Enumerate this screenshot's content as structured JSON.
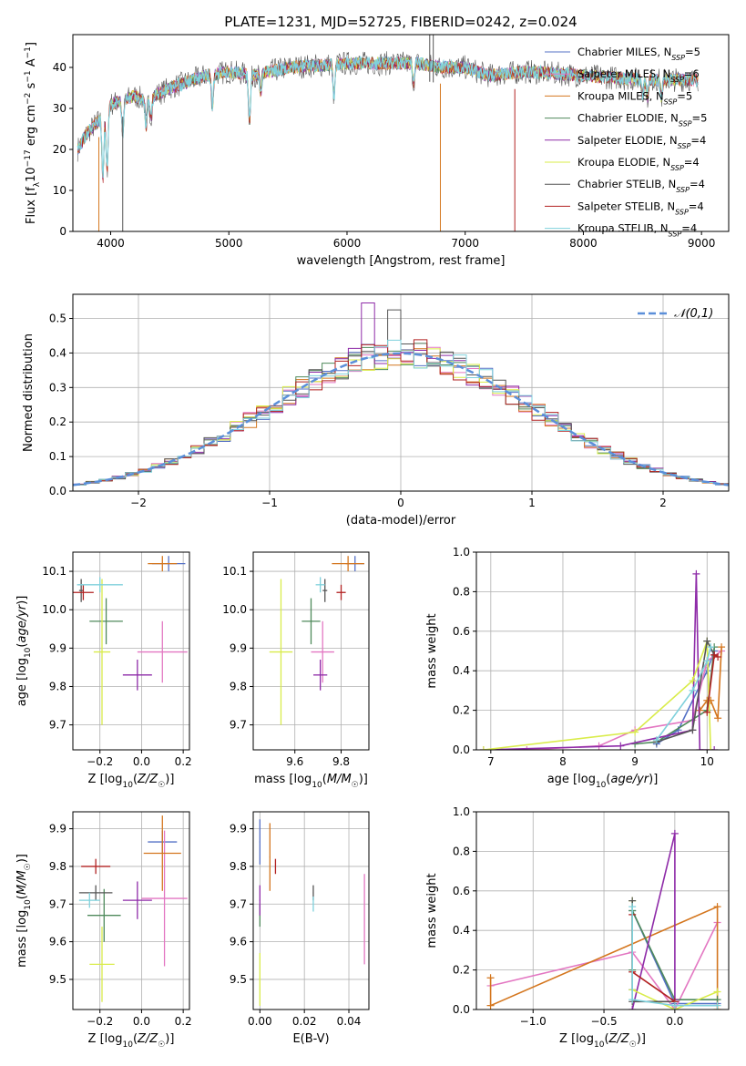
{
  "figure_title": "PLATE=1231, MJD=52725, FIBERID=0242, z=0.024",
  "models": [
    {
      "label": "Chabrier MILES, N_SSP=5",
      "label_main": "Chabrier MILES, N",
      "label_sub": "SSP",
      "label_tail": "=5",
      "color": "#5470c6"
    },
    {
      "label": "Salpeter MILES, N_SSP=6",
      "label_main": "Salpeter MILES, N",
      "label_sub": "SSP",
      "label_tail": "=6",
      "color": "#e377c2"
    },
    {
      "label": "Kroupa MILES, N_SSP=5",
      "label_main": "Kroupa MILES, N",
      "label_sub": "SSP",
      "label_tail": "=5",
      "color": "#d4761e"
    },
    {
      "label": "Chabrier ELODIE, N_SSP=5",
      "label_main": "Chabrier ELODIE, N",
      "label_sub": "SSP",
      "label_tail": "=5",
      "color": "#4f8a5b"
    },
    {
      "label": "Salpeter ELODIE, N_SSP=4",
      "label_main": "Salpeter ELODIE, N",
      "label_sub": "SSP",
      "label_tail": "=4",
      "color": "#8e2ba8"
    },
    {
      "label": "Kroupa ELODIE, N_SSP=4",
      "label_main": "Kroupa ELODIE, N",
      "label_sub": "SSP",
      "label_tail": "=4",
      "color": "#d9ec4a"
    },
    {
      "label": "Chabrier STELIB, N_SSP=4",
      "label_main": "Chabrier STELIB, N",
      "label_sub": "SSP",
      "label_tail": "=4",
      "color": "#555555"
    },
    {
      "label": "Salpeter STELIB, N_SSP=4",
      "label_main": "Salpeter STELIB, N",
      "label_sub": "SSP",
      "label_tail": "=4",
      "color": "#b22222"
    },
    {
      "label": "Kroupa STELIB, N_SSP=4",
      "label_main": "Kroupa STELIB, N",
      "label_sub": "SSP",
      "label_tail": "=4",
      "color": "#7fd1dc"
    }
  ],
  "chart_data": [
    {
      "id": "spectrum",
      "type": "line",
      "title": "PLATE=1231, MJD=52725, FIBERID=0242, z=0.024",
      "xlabel": "wavelength [Angstrom, rest frame]",
      "ylabel": "Flux [f_λ 10^-17 erg cm^-2 s^-1 A^-1]",
      "xlim": [
        3680,
        9230
      ],
      "ylim": [
        0,
        48
      ],
      "xticks": [
        4000,
        5000,
        6000,
        7000,
        8000,
        9000
      ],
      "yticks": [
        0,
        10,
        20,
        30,
        40
      ],
      "continuum": {
        "x": [
          3720,
          3800,
          3900,
          3950,
          4000,
          4100,
          4200,
          4300,
          4500,
          4800,
          5000,
          5200,
          5500,
          6000,
          6300,
          6600,
          6800,
          7000,
          7200,
          7500,
          8000,
          8500,
          8970
        ],
        "y": [
          20,
          24,
          27,
          29,
          31,
          32,
          33,
          32,
          35,
          38,
          39,
          38,
          40,
          41,
          41,
          41,
          40,
          40,
          38,
          39,
          38,
          37,
          37
        ]
      },
      "absorption_features": [
        {
          "x": 3934,
          "depth": 0.55
        },
        {
          "x": 3969,
          "depth": 0.5
        },
        {
          "x": 4102,
          "depth": 0.25
        },
        {
          "x": 4300,
          "depth": 0.2
        },
        {
          "x": 4340,
          "depth": 0.15
        },
        {
          "x": 4861,
          "depth": 0.2
        },
        {
          "x": 5175,
          "depth": 0.3
        },
        {
          "x": 5270,
          "depth": 0.12
        },
        {
          "x": 5890,
          "depth": 0.2
        },
        {
          "x": 6563,
          "depth": 0.12
        },
        {
          "x": 8500,
          "depth": 0.1
        },
        {
          "x": 8542,
          "depth": 0.12
        },
        {
          "x": 8662,
          "depth": 0.12
        }
      ],
      "spikes": [
        {
          "x": 3900,
          "y": 0,
          "color": "#d4761e"
        },
        {
          "x": 4102,
          "y": 0,
          "color": "#555555"
        },
        {
          "x": 6790,
          "y": 0,
          "color": "#d4761e"
        },
        {
          "x": 7420,
          "y": 0,
          "color": "#b22222"
        },
        {
          "x": 6700,
          "y": 48,
          "color": "#555555"
        },
        {
          "x": 6730,
          "y": 48,
          "color": "#555555"
        }
      ]
    },
    {
      "id": "residuals",
      "type": "histogram",
      "xlabel": "(data-model)/error",
      "ylabel": "Normed distribution",
      "xlim": [
        -2.5,
        2.5
      ],
      "ylim": [
        0,
        0.57
      ],
      "xticks": [
        -2,
        -1,
        0,
        1,
        2
      ],
      "xtick_labels": [
        "−2",
        "−1",
        "0",
        "1",
        "2"
      ],
      "yticks": [
        0.0,
        0.1,
        0.2,
        0.3,
        0.4,
        0.5
      ],
      "reference_curve": {
        "name": "𝒩(0,1)",
        "type": "normal",
        "mean": 0,
        "sigma": 1,
        "color": "#5b8fd9"
      },
      "bin_width": 0.1,
      "bin_edges_start": -2.5,
      "histogram_profile": [
        0.02,
        0.03,
        0.035,
        0.045,
        0.05,
        0.06,
        0.07,
        0.08,
        0.09,
        0.11,
        0.12,
        0.14,
        0.15,
        0.17,
        0.19,
        0.21,
        0.23,
        0.26,
        0.28,
        0.31,
        0.33,
        0.35,
        0.37,
        0.38,
        0.4,
        0.41,
        0.42,
        0.44,
        0.43,
        0.45,
        0.47,
        0.42,
        0.44,
        0.41,
        0.4,
        0.39,
        0.37,
        0.35,
        0.33,
        0.32,
        0.3,
        0.28,
        0.26,
        0.24,
        0.22,
        0.2,
        0.18,
        0.16,
        0.14,
        0.12
      ]
    },
    {
      "id": "age_vs_Z",
      "type": "scatter",
      "xlabel": "Z [log10(Z/Z_sun)]",
      "ylabel": "age  [log10(age/yr)]",
      "xlim": [
        -0.33,
        0.23
      ],
      "ylim": [
        9.635,
        10.15
      ],
      "xticks": [
        -0.2,
        0.0,
        0.2
      ],
      "xtick_labels": [
        "−0.2",
        "0.0",
        "0.2"
      ],
      "yticks": [
        9.7,
        9.8,
        9.9,
        10.0,
        10.1
      ],
      "points": [
        {
          "model": 0,
          "x": 0.13,
          "y": 10.12,
          "xerr": 0.08,
          "yerr": 0.02
        },
        {
          "model": 1,
          "x": 0.1,
          "y": 9.89,
          "xerr": 0.12,
          "yerr": 0.08
        },
        {
          "model": 2,
          "x": 0.1,
          "y": 10.12,
          "xerr": 0.07,
          "yerr": 0.02
        },
        {
          "model": 3,
          "x": -0.17,
          "y": 9.97,
          "xerr": 0.08,
          "yerr": 0.06
        },
        {
          "model": 4,
          "x": -0.02,
          "y": 9.83,
          "xerr": 0.07,
          "yerr": 0.04
        },
        {
          "model": 5,
          "x": -0.19,
          "y": 9.89,
          "xerr": 0.04,
          "yerr": 0.19
        },
        {
          "model": 6,
          "x": -0.29,
          "y": 10.05,
          "xerr": 0.01,
          "yerr": 0.03
        },
        {
          "model": 7,
          "x": -0.28,
          "y": 10.045,
          "xerr": 0.05,
          "yerr": 0.02
        },
        {
          "model": 8,
          "x": -0.2,
          "y": 10.065,
          "xerr": 0.11,
          "yerr": 0.02
        }
      ]
    },
    {
      "id": "age_vs_mass",
      "type": "scatter",
      "xlabel": "mass [log10(M/M_sun)]",
      "ylabel": "",
      "xlim": [
        9.42,
        9.92
      ],
      "ylim": [
        9.635,
        10.15
      ],
      "xticks": [
        9.6,
        9.8
      ],
      "xtick_labels": [
        "9.6",
        "9.8"
      ],
      "yticks": [
        9.7,
        9.8,
        9.9,
        10.0,
        10.1
      ],
      "points": [
        {
          "model": 0,
          "x": 9.86,
          "y": 10.12,
          "xerr": 0.04,
          "yerr": 0.02
        },
        {
          "model": 1,
          "x": 9.72,
          "y": 9.89,
          "xerr": 0.05,
          "yerr": 0.08
        },
        {
          "model": 2,
          "x": 9.83,
          "y": 10.12,
          "xerr": 0.07,
          "yerr": 0.02
        },
        {
          "model": 3,
          "x": 9.67,
          "y": 9.97,
          "xerr": 0.04,
          "yerr": 0.06
        },
        {
          "model": 4,
          "x": 9.71,
          "y": 9.83,
          "xerr": 0.03,
          "yerr": 0.04
        },
        {
          "model": 5,
          "x": 9.54,
          "y": 9.89,
          "xerr": 0.05,
          "yerr": 0.19
        },
        {
          "model": 6,
          "x": 9.73,
          "y": 10.05,
          "xerr": 0.01,
          "yerr": 0.03
        },
        {
          "model": 7,
          "x": 9.8,
          "y": 10.045,
          "xerr": 0.02,
          "yerr": 0.02
        },
        {
          "model": 8,
          "x": 9.71,
          "y": 10.065,
          "xerr": 0.02,
          "yerr": 0.02
        }
      ]
    },
    {
      "id": "weights_vs_age",
      "type": "line",
      "xlabel": "age  [log10(age/yr)]",
      "ylabel": "mass weight",
      "xlim": [
        6.8,
        10.3
      ],
      "ylim": [
        0,
        1.0
      ],
      "xticks": [
        7,
        8,
        9,
        10
      ],
      "xtick_labels": [
        "7",
        "8",
        "9",
        "10"
      ],
      "yticks": [
        0.0,
        0.2,
        0.4,
        0.6,
        0.8,
        1.0
      ],
      "series": [
        {
          "model": 0,
          "x": [
            9.3,
            9.6,
            10.0,
            10.1
          ],
          "y": [
            0.03,
            0.1,
            0.4,
            0.5
          ]
        },
        {
          "model": 1,
          "x": [
            7.5,
            8.5,
            9.0,
            9.8,
            10.0,
            10.2
          ],
          "y": [
            0.0,
            0.02,
            0.1,
            0.15,
            0.45,
            0.5
          ]
        },
        {
          "model": 2,
          "x": [
            9.9,
            10.0,
            10.05,
            10.15,
            10.2
          ],
          "y": [
            0.2,
            0.25,
            0.25,
            0.16,
            0.52
          ]
        },
        {
          "model": 3,
          "x": [
            9.0,
            9.3,
            10.0,
            10.1
          ],
          "y": [
            0.03,
            0.04,
            0.2,
            0.52
          ]
        },
        {
          "model": 4,
          "x": [
            6.9,
            8.8,
            9.8,
            9.85,
            9.9,
            10.1
          ],
          "y": [
            0.0,
            0.02,
            0.1,
            0.89,
            0.0,
            0.0
          ]
        },
        {
          "model": 5,
          "x": [
            6.9,
            9.0,
            9.8,
            10.0,
            10.05
          ],
          "y": [
            0.0,
            0.09,
            0.35,
            0.55,
            0.0
          ]
        },
        {
          "model": 6,
          "x": [
            9.3,
            9.8,
            10.0,
            10.1
          ],
          "y": [
            0.04,
            0.1,
            0.55,
            0.48
          ]
        },
        {
          "model": 7,
          "x": [
            10.0,
            10.1,
            10.15
          ],
          "y": [
            0.19,
            0.48,
            0.47
          ]
        },
        {
          "model": 8,
          "x": [
            9.3,
            9.8,
            10.0,
            10.05
          ],
          "y": [
            0.05,
            0.3,
            0.45,
            0.52
          ]
        }
      ]
    },
    {
      "id": "mass_vs_Z",
      "type": "scatter",
      "xlabel": "Z [log10(Z/Z_sun)]",
      "ylabel": "mass [log10(M/M_sun)]",
      "xlim": [
        -0.33,
        0.23
      ],
      "ylim": [
        9.42,
        9.945
      ],
      "xticks": [
        -0.2,
        0.0,
        0.2
      ],
      "xtick_labels": [
        "−0.2",
        "0.0",
        "0.2"
      ],
      "yticks": [
        9.5,
        9.6,
        9.7,
        9.8,
        9.9
      ],
      "points": [
        {
          "model": 0,
          "x": 0.1,
          "y": 9.865,
          "xerr": 0.07,
          "yerr": 0.03
        },
        {
          "model": 1,
          "x": 0.11,
          "y": 9.715,
          "xerr": 0.11,
          "yerr": 0.18
        },
        {
          "model": 2,
          "x": 0.1,
          "y": 9.835,
          "xerr": 0.09,
          "yerr": 0.1
        },
        {
          "model": 3,
          "x": -0.18,
          "y": 9.67,
          "xerr": 0.08,
          "yerr": 0.07
        },
        {
          "model": 4,
          "x": -0.02,
          "y": 9.71,
          "xerr": 0.07,
          "yerr": 0.05
        },
        {
          "model": 5,
          "x": -0.19,
          "y": 9.54,
          "xerr": 0.06,
          "yerr": 0.1
        },
        {
          "model": 6,
          "x": -0.22,
          "y": 9.73,
          "xerr": 0.08,
          "yerr": 0.02
        },
        {
          "model": 7,
          "x": -0.22,
          "y": 9.8,
          "xerr": 0.07,
          "yerr": 0.02
        },
        {
          "model": 8,
          "x": -0.25,
          "y": 9.71,
          "xerr": 0.05,
          "yerr": 0.02
        }
      ]
    },
    {
      "id": "mass_vs_EBV",
      "type": "scatter",
      "xlabel": "E(B-V)",
      "ylabel": "",
      "xlim": [
        -0.003,
        0.049
      ],
      "ylim": [
        9.42,
        9.945
      ],
      "xticks": [
        0.0,
        0.02,
        0.04
      ],
      "xtick_labels": [
        "0.00",
        "0.02",
        "0.04"
      ],
      "yticks": [
        9.5,
        9.6,
        9.7,
        9.8,
        9.9
      ],
      "points": [
        {
          "model": 0,
          "x": 0.0,
          "y": 9.865,
          "xerr": 0.0002,
          "yerr": 0.06
        },
        {
          "model": 1,
          "x": 0.047,
          "y": 9.66,
          "xerr": 0.0002,
          "yerr": 0.12
        },
        {
          "model": 2,
          "x": 0.0045,
          "y": 9.825,
          "xerr": 0.0002,
          "yerr": 0.09
        },
        {
          "model": 3,
          "x": 0.0,
          "y": 9.67,
          "xerr": 0.0002,
          "yerr": 0.03
        },
        {
          "model": 4,
          "x": 0.0,
          "y": 9.71,
          "xerr": 0.0002,
          "yerr": 0.04
        },
        {
          "model": 5,
          "x": 0.0,
          "y": 9.5,
          "xerr": 0.0002,
          "yerr": 0.07
        },
        {
          "model": 6,
          "x": 0.024,
          "y": 9.73,
          "xerr": 0.0002,
          "yerr": 0.02
        },
        {
          "model": 7,
          "x": 0.007,
          "y": 9.8,
          "xerr": 0.0002,
          "yerr": 0.02
        },
        {
          "model": 8,
          "x": 0.024,
          "y": 9.7,
          "xerr": 0.0002,
          "yerr": 0.02
        }
      ]
    },
    {
      "id": "weights_vs_Z",
      "type": "line",
      "xlabel": "Z [log10(Z/Z_sun)]",
      "ylabel": "mass weight",
      "xlim": [
        -1.4,
        0.38
      ],
      "ylim": [
        0,
        1.0
      ],
      "xticks": [
        -1.0,
        -0.5,
        0.0
      ],
      "xtick_labels": [
        "−1.0",
        "−0.5",
        "0.0"
      ],
      "yticks": [
        0.0,
        0.2,
        0.4,
        0.6,
        0.8,
        1.0
      ],
      "series": [
        {
          "model": 0,
          "x": [
            -0.3,
            -0.3,
            0.0,
            0.3
          ],
          "y": [
            0.1,
            0.5,
            0.03,
            0.03
          ]
        },
        {
          "model": 1,
          "x": [
            -1.3,
            -0.3,
            0.0,
            0.3
          ],
          "y": [
            0.12,
            0.29,
            0.0,
            0.44
          ]
        },
        {
          "model": 2,
          "x": [
            -1.3,
            -1.3,
            0.3,
            0.3
          ],
          "y": [
            0.16,
            0.02,
            0.52,
            0.0
          ]
        },
        {
          "model": 3,
          "x": [
            -0.3,
            -0.3,
            0.0,
            0.3
          ],
          "y": [
            0.2,
            0.5,
            0.05,
            0.05
          ]
        },
        {
          "model": 4,
          "x": [
            -0.3,
            0.0,
            0.0
          ],
          "y": [
            0.0,
            0.89,
            0.05
          ]
        },
        {
          "model": 5,
          "x": [
            -0.3,
            -0.3,
            0.0,
            0.3
          ],
          "y": [
            0.55,
            0.1,
            0.0,
            0.09
          ]
        },
        {
          "model": 6,
          "x": [
            -0.3,
            -0.3,
            0.0
          ],
          "y": [
            0.55,
            0.04,
            0.04
          ]
        },
        {
          "model": 7,
          "x": [
            -0.3,
            -0.3,
            0.0
          ],
          "y": [
            0.48,
            0.19,
            0.04
          ]
        },
        {
          "model": 8,
          "x": [
            -0.3,
            -0.3,
            0.0,
            0.3
          ],
          "y": [
            0.52,
            0.05,
            0.02,
            0.02
          ]
        }
      ]
    }
  ]
}
